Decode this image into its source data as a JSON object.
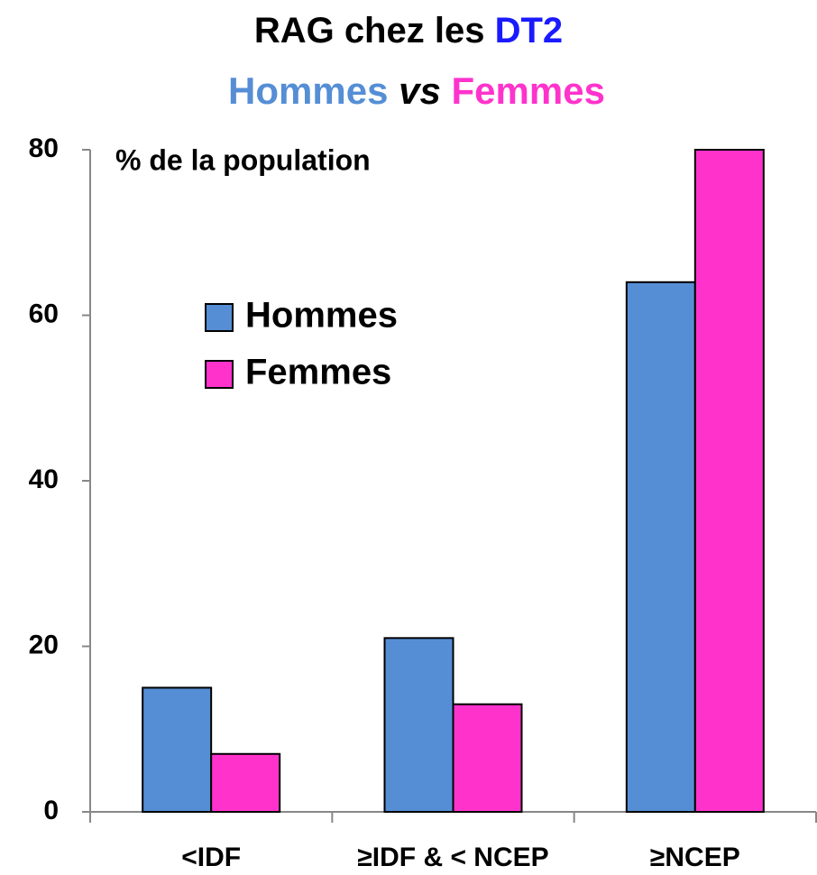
{
  "chart_data": {
    "type": "bar",
    "title": {
      "text": "RAG chez les",
      "highlight": "DT2"
    },
    "subtitle": {
      "left": "Hommes",
      "middle": "vs",
      "right": "Femmes"
    },
    "annotation": "% de la population",
    "categories": [
      "<IDF",
      "≥IDF & < NCEP",
      "≥NCEP"
    ],
    "series": [
      {
        "name": "Hommes",
        "color": "#558ed5",
        "values": [
          15,
          21,
          64
        ]
      },
      {
        "name": "Femmes",
        "color": "#ff33cc",
        "values": [
          7,
          13,
          80
        ]
      }
    ],
    "ylim": [
      0,
      80
    ],
    "yticks": [
      0,
      20,
      40,
      60,
      80
    ],
    "grid": false,
    "legend": "upper left",
    "highlight_color": "#1a1aff"
  }
}
